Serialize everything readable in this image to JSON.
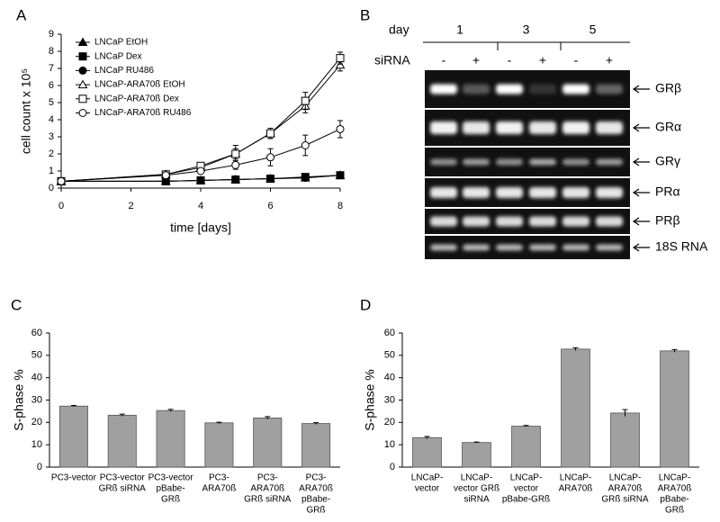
{
  "chart_data": [
    {
      "type": "line",
      "panel": "A",
      "xlabel": "time [days]",
      "ylabel": "cell count x 10⁵",
      "x": [
        0,
        3,
        4,
        5,
        6,
        7,
        8
      ],
      "xlim": [
        0,
        8
      ],
      "xticks": [
        0,
        2,
        4,
        6,
        8
      ],
      "ylim": [
        0,
        9
      ],
      "yticks": [
        0,
        1,
        2,
        3,
        4,
        5,
        6,
        7,
        8,
        9
      ],
      "series": [
        {
          "name": "LNCaP EtOH",
          "color": "#000000",
          "marker": "triangle",
          "marker_fill": "#000000",
          "values": [
            0.4,
            0.4,
            0.45,
            0.5,
            0.55,
            0.6,
            0.75
          ],
          "errors": [
            0.05,
            0.05,
            0.05,
            0.05,
            0.05,
            0.05,
            0.05
          ]
        },
        {
          "name": "LNCaP Dex",
          "color": "#000000",
          "marker": "square",
          "marker_fill": "#000000",
          "values": [
            0.4,
            0.4,
            0.45,
            0.5,
            0.55,
            0.65,
            0.75
          ],
          "errors": [
            0.05,
            0.05,
            0.05,
            0.05,
            0.05,
            0.05,
            0.05
          ]
        },
        {
          "name": "LNCaP RU486",
          "color": "#000000",
          "marker": "circle",
          "marker_fill": "#000000",
          "values": [
            0.4,
            0.4,
            0.45,
            0.5,
            0.55,
            0.6,
            0.75
          ],
          "errors": [
            0.05,
            0.05,
            0.05,
            0.05,
            0.05,
            0.05,
            0.05
          ]
        },
        {
          "name": "LNCaP-ARA70ß EtOH",
          "color": "#000000",
          "marker": "triangle",
          "marker_fill": "#ffffff",
          "values": [
            0.4,
            0.8,
            1.2,
            2.0,
            3.2,
            4.8,
            7.2
          ],
          "errors": [
            0.1,
            0.1,
            0.15,
            0.3,
            0.3,
            0.4,
            0.35
          ]
        },
        {
          "name": "LNCaP-ARA70ß Dex",
          "color": "#000000",
          "marker": "square",
          "marker_fill": "#ffffff",
          "values": [
            0.4,
            0.8,
            1.3,
            2.0,
            3.2,
            5.1,
            7.6
          ],
          "errors": [
            0.1,
            0.1,
            0.15,
            0.5,
            0.3,
            0.5,
            0.35
          ]
        },
        {
          "name": "LNCaP-ARA70ß RU486",
          "color": "#000000",
          "marker": "circle",
          "marker_fill": "#ffffff",
          "values": [
            0.4,
            0.75,
            1.0,
            1.35,
            1.8,
            2.5,
            3.45
          ],
          "errors": [
            0.1,
            0.1,
            0.15,
            0.25,
            0.5,
            0.6,
            0.5
          ]
        }
      ]
    },
    {
      "type": "bar",
      "panel": "C",
      "ylabel": "S-phase %",
      "color": "#a0a0a0",
      "categories": [
        [
          "PC3-vector"
        ],
        [
          "PC3-vector",
          "GRß siRNA"
        ],
        [
          "PC3-vector",
          "pBabe-",
          "GRß"
        ],
        [
          "PC3-",
          "ARA70ß"
        ],
        [
          "PC3-",
          "ARA70ß",
          "GRß siRNA"
        ],
        [
          "PC3-",
          "ARA70ß",
          "pBabe-",
          "GRß"
        ]
      ],
      "values": [
        27.3,
        23.2,
        25.3,
        19.8,
        22.0,
        19.5
      ],
      "errors": [
        0.3,
        0.5,
        0.5,
        0.3,
        0.6,
        0.4
      ],
      "ylim": [
        0,
        60
      ],
      "yticks": [
        0,
        10,
        20,
        30,
        40,
        50,
        60
      ]
    },
    {
      "type": "bar",
      "panel": "D",
      "ylabel": "S-phase %",
      "color": "#a0a0a0",
      "categories": [
        [
          "LNCaP-",
          "vector"
        ],
        [
          "LNCaP-",
          "vector GRß",
          "siRNA"
        ],
        [
          "LNCaP-",
          "vector",
          "pBabe-GRß"
        ],
        [
          "LNCaP-",
          "ARA70ß"
        ],
        [
          "LNCaP-",
          "ARA70ß",
          "GRß siRNA"
        ],
        [
          "LNCaP-",
          "ARA70ß",
          "pBabe-",
          "GRß"
        ]
      ],
      "values": [
        13.2,
        11.0,
        18.3,
        52.8,
        24.2,
        52.0
      ],
      "errors": [
        0.5,
        0.2,
        0.3,
        0.6,
        1.5,
        0.6
      ],
      "ylim": [
        0,
        60
      ],
      "yticks": [
        0,
        10,
        20,
        30,
        40,
        50,
        60
      ]
    }
  ],
  "gel": {
    "panel": "B",
    "day_label": "day",
    "days": [
      "1",
      "3",
      "5"
    ],
    "sirna_label": "siRNA",
    "sirna": [
      "-",
      "+",
      "-",
      "+",
      "-",
      "+"
    ],
    "bands": [
      "GRβ",
      "GRα",
      "GRγ",
      "PRα",
      "PRβ",
      "18S RNA"
    ]
  }
}
